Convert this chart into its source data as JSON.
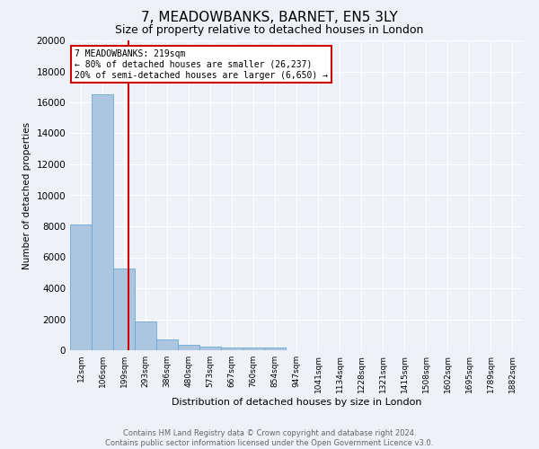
{
  "title": "7, MEADOWBANKS, BARNET, EN5 3LY",
  "subtitle": "Size of property relative to detached houses in London",
  "xlabel": "Distribution of detached houses by size in London",
  "ylabel": "Number of detached properties",
  "categories": [
    "12sqm",
    "106sqm",
    "199sqm",
    "293sqm",
    "386sqm",
    "480sqm",
    "573sqm",
    "667sqm",
    "760sqm",
    "854sqm",
    "947sqm",
    "1041sqm",
    "1134sqm",
    "1228sqm",
    "1321sqm",
    "1415sqm",
    "1508sqm",
    "1602sqm",
    "1695sqm",
    "1789sqm",
    "1882sqm"
  ],
  "values": [
    8100,
    16500,
    5300,
    1850,
    700,
    320,
    230,
    200,
    175,
    150,
    0,
    0,
    0,
    0,
    0,
    0,
    0,
    0,
    0,
    0,
    0
  ],
  "bar_color": "#adc6e0",
  "bar_edge_color": "#6aaad4",
  "red_line_x": 2.2,
  "annotation_title": "7 MEADOWBANKS: 219sqm",
  "annotation_line1": "← 80% of detached houses are smaller (26,237)",
  "annotation_line2": "20% of semi-detached houses are larger (6,650) →",
  "annotation_box_color": "#ffffff",
  "annotation_box_edge": "#cc0000",
  "red_line_color": "#cc0000",
  "footer1": "Contains HM Land Registry data © Crown copyright and database right 2024.",
  "footer2": "Contains public sector information licensed under the Open Government Licence v3.0.",
  "ylim": [
    0,
    20000
  ],
  "yticks": [
    0,
    2000,
    4000,
    6000,
    8000,
    10000,
    12000,
    14000,
    16000,
    18000,
    20000
  ],
  "background_color": "#eef2f8",
  "plot_bg_color": "#eef2f8",
  "grid_color": "#ffffff",
  "title_fontsize": 11,
  "subtitle_fontsize": 9
}
